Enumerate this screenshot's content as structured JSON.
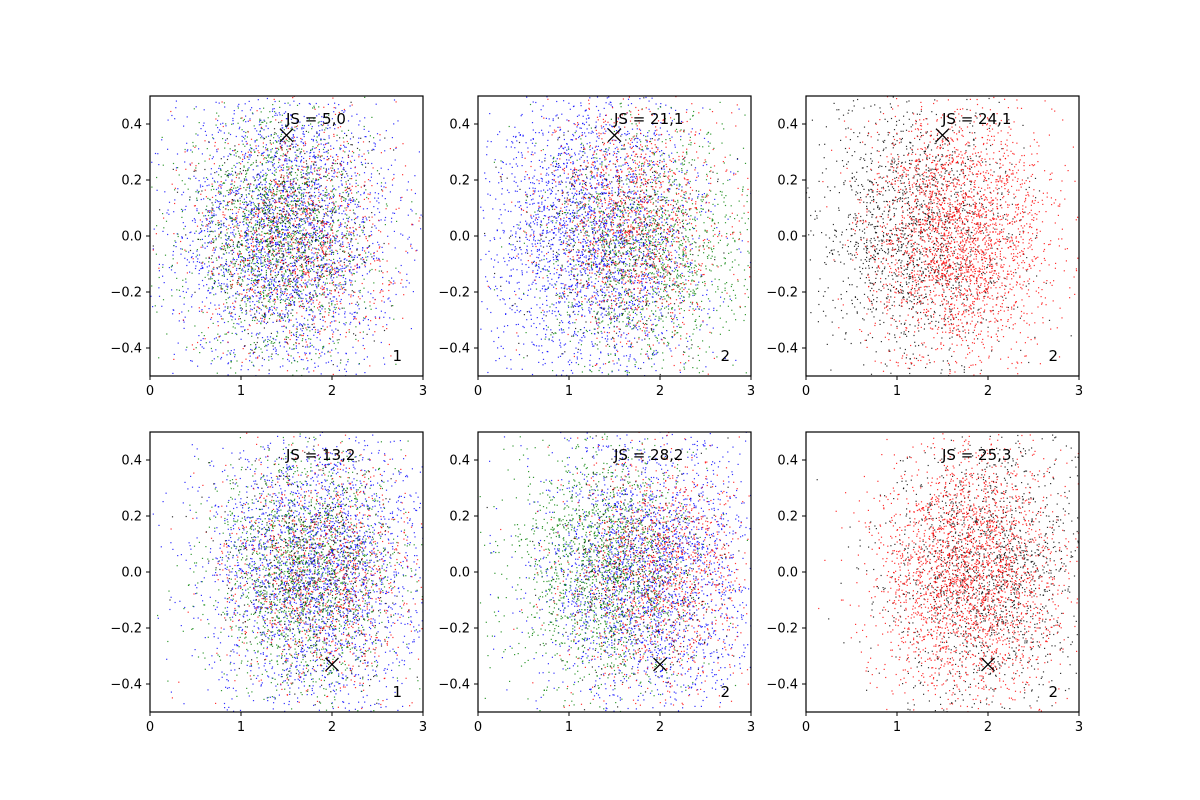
{
  "chart_data": [
    {
      "type": "scatter",
      "annotation": "JS = 5,0",
      "corner_label": "1",
      "marker": {
        "x": 1.5,
        "y": 0.36,
        "symbol": "x"
      },
      "xlim": [
        0,
        3
      ],
      "ylim": [
        -0.5,
        0.5
      ],
      "xticks": [
        "0",
        "1",
        "2",
        "3"
      ],
      "yticks": [
        "−0.4",
        "−0.2",
        "0.0",
        "0.2",
        "0.4"
      ],
      "series": [
        {
          "color": "#0000ff",
          "point_count": 2600,
          "center": [
            1.5,
            0.0
          ],
          "spread": [
            0.6,
            0.26
          ]
        },
        {
          "color": "#008000",
          "point_count": 1700,
          "center": [
            1.4,
            0.0
          ],
          "spread": [
            0.5,
            0.22
          ]
        },
        {
          "color": "#ff0000",
          "point_count": 1100,
          "center": [
            1.6,
            0.0
          ],
          "spread": [
            0.55,
            0.22
          ]
        },
        {
          "color": "#000000",
          "point_count": 500,
          "center": [
            1.5,
            0.0
          ],
          "spread": [
            0.5,
            0.2
          ]
        }
      ]
    },
    {
      "type": "scatter",
      "annotation": "JS = 21,1",
      "corner_label": "2",
      "marker": {
        "x": 1.5,
        "y": 0.36,
        "symbol": "x"
      },
      "xlim": [
        0,
        3
      ],
      "ylim": [
        -0.5,
        0.5
      ],
      "xticks": [
        "0",
        "1",
        "2",
        "3"
      ],
      "yticks": [
        "−0.4",
        "−0.2",
        "0.0",
        "0.2",
        "0.4"
      ],
      "series": [
        {
          "color": "#0000ff",
          "point_count": 2600,
          "center": [
            1.3,
            0.0
          ],
          "spread": [
            0.6,
            0.26
          ]
        },
        {
          "color": "#008000",
          "point_count": 1500,
          "center": [
            1.9,
            -0.05
          ],
          "spread": [
            0.55,
            0.22
          ]
        },
        {
          "color": "#ff0000",
          "point_count": 1300,
          "center": [
            1.7,
            0.05
          ],
          "spread": [
            0.5,
            0.22
          ]
        },
        {
          "color": "#000000",
          "point_count": 400,
          "center": [
            1.5,
            0.0
          ],
          "spread": [
            0.5,
            0.2
          ]
        }
      ]
    },
    {
      "type": "scatter",
      "annotation": "JS = 24,1",
      "corner_label": "2",
      "marker": {
        "x": 1.5,
        "y": 0.36,
        "symbol": "x"
      },
      "xlim": [
        0,
        3
      ],
      "ylim": [
        -0.5,
        0.5
      ],
      "xticks": [
        "0",
        "1",
        "2",
        "3"
      ],
      "yticks": [
        "−0.4",
        "−0.2",
        "0.0",
        "0.2",
        "0.4"
      ],
      "series": [
        {
          "color": "#000000",
          "point_count": 1700,
          "center": [
            1.2,
            0.0
          ],
          "spread": [
            0.55,
            0.24
          ]
        },
        {
          "color": "#ff0000",
          "point_count": 2600,
          "center": [
            1.7,
            0.0
          ],
          "spread": [
            0.5,
            0.22
          ]
        }
      ]
    },
    {
      "type": "scatter",
      "annotation": "JS = 13,2",
      "corner_label": "1",
      "marker": {
        "x": 2.0,
        "y": -0.33,
        "symbol": "x"
      },
      "xlim": [
        0,
        3
      ],
      "ylim": [
        -0.5,
        0.5
      ],
      "xticks": [
        "0",
        "1",
        "2",
        "3"
      ],
      "yticks": [
        "−0.4",
        "−0.2",
        "0.0",
        "0.2",
        "0.4"
      ],
      "series": [
        {
          "color": "#0000ff",
          "point_count": 2600,
          "center": [
            1.8,
            0.0
          ],
          "spread": [
            0.6,
            0.26
          ]
        },
        {
          "color": "#008000",
          "point_count": 1700,
          "center": [
            1.7,
            0.0
          ],
          "spread": [
            0.5,
            0.22
          ]
        },
        {
          "color": "#ff0000",
          "point_count": 1100,
          "center": [
            1.9,
            0.0
          ],
          "spread": [
            0.55,
            0.22
          ]
        },
        {
          "color": "#000000",
          "point_count": 500,
          "center": [
            1.8,
            0.0
          ],
          "spread": [
            0.5,
            0.2
          ]
        }
      ]
    },
    {
      "type": "scatter",
      "annotation": "JS = 28,2",
      "corner_label": "2",
      "marker": {
        "x": 2.0,
        "y": -0.33,
        "symbol": "x"
      },
      "xlim": [
        0,
        3
      ],
      "ylim": [
        -0.5,
        0.5
      ],
      "xticks": [
        "0",
        "1",
        "2",
        "3"
      ],
      "yticks": [
        "−0.4",
        "−0.2",
        "0.0",
        "0.2",
        "0.4"
      ],
      "series": [
        {
          "color": "#0000ff",
          "point_count": 2500,
          "center": [
            1.9,
            0.0
          ],
          "spread": [
            0.6,
            0.26
          ]
        },
        {
          "color": "#008000",
          "point_count": 1700,
          "center": [
            1.4,
            0.0
          ],
          "spread": [
            0.5,
            0.22
          ]
        },
        {
          "color": "#ff0000",
          "point_count": 1300,
          "center": [
            2.0,
            0.0
          ],
          "spread": [
            0.5,
            0.22
          ]
        },
        {
          "color": "#000000",
          "point_count": 400,
          "center": [
            1.8,
            0.0
          ],
          "spread": [
            0.5,
            0.2
          ]
        }
      ]
    },
    {
      "type": "scatter",
      "annotation": "JS = 25,3",
      "corner_label": "2",
      "marker": {
        "x": 2.0,
        "y": -0.33,
        "symbol": "x"
      },
      "xlim": [
        0,
        3
      ],
      "ylim": [
        -0.5,
        0.5
      ],
      "xticks": [
        "0",
        "1",
        "2",
        "3"
      ],
      "yticks": [
        "−0.4",
        "−0.2",
        "0.0",
        "0.2",
        "0.4"
      ],
      "series": [
        {
          "color": "#000000",
          "point_count": 1700,
          "center": [
            2.0,
            0.0
          ],
          "spread": [
            0.55,
            0.24
          ]
        },
        {
          "color": "#ff0000",
          "point_count": 2600,
          "center": [
            1.8,
            0.0
          ],
          "spread": [
            0.5,
            0.22
          ]
        }
      ]
    }
  ]
}
